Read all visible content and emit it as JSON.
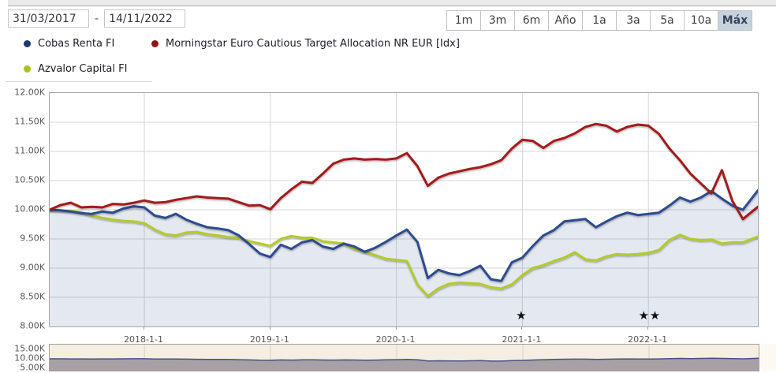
{
  "toolbar": {
    "date_from": "31/03/2017",
    "date_to": "14/11/2022",
    "date_separator": "-",
    "range_buttons": [
      {
        "label": "1m",
        "active": false
      },
      {
        "label": "3m",
        "active": false
      },
      {
        "label": "6m",
        "active": false
      },
      {
        "label": "Año",
        "active": false
      },
      {
        "label": "1a",
        "active": false
      },
      {
        "label": "3a",
        "active": false
      },
      {
        "label": "5a",
        "active": false
      },
      {
        "label": "10a",
        "active": false
      },
      {
        "label": "Máx",
        "active": true
      }
    ],
    "active_button_bg": "#c7d2df"
  },
  "legend": {
    "items": [
      {
        "name": "Cobas Renta FI",
        "color": "#1d3a6d"
      },
      {
        "name": "Morningstar Euro Cautious Target Allocation NR EUR [Idx]",
        "color": "#8f1616"
      },
      {
        "name": "Azvalor Capital FI",
        "color": "#a9c31d"
      }
    ]
  },
  "chart_data": {
    "type": "line",
    "unit": "K",
    "x_start": "2017-03-31",
    "x_end": "2022-11-14",
    "ylim": [
      8,
      12
    ],
    "grid": true,
    "area_fill": "rgba(45,76,142,0.13)",
    "y_tick_labels": [
      {
        "value": 12.0,
        "label": "12.00K"
      },
      {
        "value": 11.5,
        "label": "11.50K"
      },
      {
        "value": 11.0,
        "label": "11.00K"
      },
      {
        "value": 10.5,
        "label": "10.50K"
      },
      {
        "value": 10.0,
        "label": "10.00K"
      },
      {
        "value": 9.5,
        "label": "9.50K"
      },
      {
        "value": 9.0,
        "label": "9.00K"
      },
      {
        "value": 8.5,
        "label": "8.50K"
      },
      {
        "value": 8.0,
        "label": "8.00K"
      }
    ],
    "x_ticks": [
      {
        "date": "2018-01",
        "label": "2018-1-1"
      },
      {
        "date": "2019-01",
        "label": "2019-1-1"
      },
      {
        "date": "2020-01",
        "label": "2020-1-1"
      },
      {
        "date": "2021-01",
        "label": "2021-1-1"
      },
      {
        "date": "2022-01",
        "label": "2022-1-1"
      }
    ],
    "series": [
      {
        "name": "Cobas Renta FI",
        "color": "#2d4c8e",
        "area": true,
        "points": [
          [
            "2017-03-31",
            10.0
          ],
          [
            "2017-05",
            9.99
          ],
          [
            "2017-06",
            9.97
          ],
          [
            "2017-07",
            9.94
          ],
          [
            "2017-08",
            9.93
          ],
          [
            "2017-09",
            9.97
          ],
          [
            "2017-10",
            9.95
          ],
          [
            "2017-11",
            10.02
          ],
          [
            "2017-12",
            10.06
          ],
          [
            "2018-01",
            10.04
          ],
          [
            "2018-02",
            9.9
          ],
          [
            "2018-03",
            9.86
          ],
          [
            "2018-04",
            9.93
          ],
          [
            "2018-05",
            9.83
          ],
          [
            "2018-06",
            9.76
          ],
          [
            "2018-07",
            9.7
          ],
          [
            "2018-08",
            9.68
          ],
          [
            "2018-09",
            9.65
          ],
          [
            "2018-10",
            9.56
          ],
          [
            "2018-11",
            9.41
          ],
          [
            "2018-12",
            9.25
          ],
          [
            "2019-01",
            9.19
          ],
          [
            "2019-02",
            9.4
          ],
          [
            "2019-03",
            9.33
          ],
          [
            "2019-04",
            9.44
          ],
          [
            "2019-05",
            9.48
          ],
          [
            "2019-06",
            9.37
          ],
          [
            "2019-07",
            9.33
          ],
          [
            "2019-08",
            9.42
          ],
          [
            "2019-09",
            9.37
          ],
          [
            "2019-10",
            9.28
          ],
          [
            "2019-11",
            9.35
          ],
          [
            "2019-12",
            9.45
          ],
          [
            "2020-01",
            9.56
          ],
          [
            "2020-02",
            9.66
          ],
          [
            "2020-03",
            9.45
          ],
          [
            "2020-04",
            8.83
          ],
          [
            "2020-05",
            8.97
          ],
          [
            "2020-06",
            8.91
          ],
          [
            "2020-07",
            8.88
          ],
          [
            "2020-08",
            8.95
          ],
          [
            "2020-09",
            9.04
          ],
          [
            "2020-10",
            8.81
          ],
          [
            "2020-11",
            8.78
          ],
          [
            "2020-12",
            9.1
          ],
          [
            "2021-01",
            9.18
          ],
          [
            "2021-02",
            9.38
          ],
          [
            "2021-03",
            9.56
          ],
          [
            "2021-04",
            9.65
          ],
          [
            "2021-05",
            9.8
          ],
          [
            "2021-06",
            9.82
          ],
          [
            "2021-07",
            9.84
          ],
          [
            "2021-08",
            9.7
          ],
          [
            "2021-09",
            9.8
          ],
          [
            "2021-10",
            9.89
          ],
          [
            "2021-11",
            9.95
          ],
          [
            "2021-12",
            9.91
          ],
          [
            "2022-01",
            9.93
          ],
          [
            "2022-02",
            9.95
          ],
          [
            "2022-03",
            10.07
          ],
          [
            "2022-04",
            10.21
          ],
          [
            "2022-05",
            10.14
          ],
          [
            "2022-06",
            10.21
          ],
          [
            "2022-07",
            10.32
          ],
          [
            "2022-08",
            10.19
          ],
          [
            "2022-09",
            10.07
          ],
          [
            "2022-10",
            10.0
          ],
          [
            "2022-11-14",
            10.33
          ]
        ]
      },
      {
        "name": "Morningstar Euro Cautious Target Allocation NR EUR [Idx]",
        "color": "#a11b1b",
        "area": false,
        "points": [
          [
            "2017-03-31",
            10.0
          ],
          [
            "2017-05",
            10.08
          ],
          [
            "2017-06",
            10.12
          ],
          [
            "2017-07",
            10.04
          ],
          [
            "2017-08",
            10.05
          ],
          [
            "2017-09",
            10.04
          ],
          [
            "2017-10",
            10.1
          ],
          [
            "2017-11",
            10.09
          ],
          [
            "2017-12",
            10.12
          ],
          [
            "2018-01",
            10.16
          ],
          [
            "2018-02",
            10.12
          ],
          [
            "2018-03",
            10.13
          ],
          [
            "2018-04",
            10.17
          ],
          [
            "2018-05",
            10.2
          ],
          [
            "2018-06",
            10.23
          ],
          [
            "2018-07",
            10.21
          ],
          [
            "2018-08",
            10.2
          ],
          [
            "2018-09",
            10.19
          ],
          [
            "2018-10",
            10.13
          ],
          [
            "2018-11",
            10.07
          ],
          [
            "2018-12",
            10.08
          ],
          [
            "2019-01",
            10.01
          ],
          [
            "2019-02",
            10.2
          ],
          [
            "2019-03",
            10.35
          ],
          [
            "2019-04",
            10.48
          ],
          [
            "2019-05",
            10.46
          ],
          [
            "2019-06",
            10.62
          ],
          [
            "2019-07",
            10.79
          ],
          [
            "2019-08",
            10.86
          ],
          [
            "2019-09",
            10.88
          ],
          [
            "2019-10",
            10.86
          ],
          [
            "2019-11",
            10.87
          ],
          [
            "2019-12",
            10.86
          ],
          [
            "2020-01",
            10.88
          ],
          [
            "2020-02",
            10.97
          ],
          [
            "2020-03",
            10.75
          ],
          [
            "2020-04",
            10.41
          ],
          [
            "2020-05",
            10.55
          ],
          [
            "2020-06",
            10.62
          ],
          [
            "2020-07",
            10.66
          ],
          [
            "2020-08",
            10.7
          ],
          [
            "2020-09",
            10.73
          ],
          [
            "2020-10",
            10.78
          ],
          [
            "2020-11",
            10.85
          ],
          [
            "2020-12",
            11.05
          ],
          [
            "2021-01",
            11.2
          ],
          [
            "2021-02",
            11.18
          ],
          [
            "2021-03",
            11.06
          ],
          [
            "2021-04",
            11.18
          ],
          [
            "2021-05",
            11.23
          ],
          [
            "2021-06",
            11.31
          ],
          [
            "2021-07",
            11.42
          ],
          [
            "2021-08",
            11.47
          ],
          [
            "2021-09",
            11.44
          ],
          [
            "2021-10",
            11.34
          ],
          [
            "2021-11",
            11.42
          ],
          [
            "2021-12",
            11.46
          ],
          [
            "2022-01",
            11.44
          ],
          [
            "2022-02",
            11.3
          ],
          [
            "2022-03",
            11.05
          ],
          [
            "2022-04",
            10.85
          ],
          [
            "2022-05",
            10.62
          ],
          [
            "2022-06",
            10.45
          ],
          [
            "2022-07",
            10.28
          ],
          [
            "2022-08",
            10.68
          ],
          [
            "2022-09",
            10.15
          ],
          [
            "2022-10",
            9.84
          ],
          [
            "2022-11-14",
            10.05
          ]
        ]
      },
      {
        "name": "Azvalor Capital FI",
        "color": "#b3ca2b",
        "area": false,
        "points": [
          [
            "2017-03-31",
            10.0
          ],
          [
            "2017-05",
            9.99
          ],
          [
            "2017-06",
            9.98
          ],
          [
            "2017-07",
            9.96
          ],
          [
            "2017-08",
            9.9
          ],
          [
            "2017-09",
            9.86
          ],
          [
            "2017-10",
            9.83
          ],
          [
            "2017-11",
            9.81
          ],
          [
            "2017-12",
            9.8
          ],
          [
            "2018-01",
            9.77
          ],
          [
            "2018-02",
            9.66
          ],
          [
            "2018-03",
            9.58
          ],
          [
            "2018-04",
            9.56
          ],
          [
            "2018-05",
            9.61
          ],
          [
            "2018-06",
            9.62
          ],
          [
            "2018-07",
            9.58
          ],
          [
            "2018-08",
            9.56
          ],
          [
            "2018-09",
            9.53
          ],
          [
            "2018-10",
            9.52
          ],
          [
            "2018-11",
            9.46
          ],
          [
            "2018-12",
            9.42
          ],
          [
            "2019-01",
            9.38
          ],
          [
            "2019-02",
            9.5
          ],
          [
            "2019-03",
            9.55
          ],
          [
            "2019-04",
            9.52
          ],
          [
            "2019-05",
            9.52
          ],
          [
            "2019-06",
            9.46
          ],
          [
            "2019-07",
            9.44
          ],
          [
            "2019-08",
            9.42
          ],
          [
            "2019-09",
            9.33
          ],
          [
            "2019-10",
            9.28
          ],
          [
            "2019-11",
            9.22
          ],
          [
            "2019-12",
            9.16
          ],
          [
            "2020-01",
            9.14
          ],
          [
            "2020-02",
            9.12
          ],
          [
            "2020-03",
            8.72
          ],
          [
            "2020-04",
            8.52
          ],
          [
            "2020-05",
            8.65
          ],
          [
            "2020-06",
            8.73
          ],
          [
            "2020-07",
            8.75
          ],
          [
            "2020-08",
            8.74
          ],
          [
            "2020-09",
            8.73
          ],
          [
            "2020-10",
            8.67
          ],
          [
            "2020-11",
            8.65
          ],
          [
            "2020-12",
            8.72
          ],
          [
            "2021-01",
            8.88
          ],
          [
            "2021-02",
            9.0
          ],
          [
            "2021-03",
            9.05
          ],
          [
            "2021-04",
            9.12
          ],
          [
            "2021-05",
            9.18
          ],
          [
            "2021-06",
            9.27
          ],
          [
            "2021-07",
            9.15
          ],
          [
            "2021-08",
            9.13
          ],
          [
            "2021-09",
            9.2
          ],
          [
            "2021-10",
            9.24
          ],
          [
            "2021-11",
            9.23
          ],
          [
            "2021-12",
            9.24
          ],
          [
            "2022-01",
            9.26
          ],
          [
            "2022-02",
            9.31
          ],
          [
            "2022-03",
            9.48
          ],
          [
            "2022-04",
            9.57
          ],
          [
            "2022-05",
            9.5
          ],
          [
            "2022-06",
            9.48
          ],
          [
            "2022-07",
            9.49
          ],
          [
            "2022-08",
            9.42
          ],
          [
            "2022-09",
            9.44
          ],
          [
            "2022-10",
            9.44
          ],
          [
            "2022-11-14",
            9.54
          ]
        ]
      }
    ],
    "markers": [
      {
        "date": "2020-12-28",
        "value": 8.19,
        "symbol": "★"
      },
      {
        "date": "2021-12-18",
        "value": 8.19,
        "symbol": "★"
      },
      {
        "date": "2022-01-20",
        "value": 8.19,
        "symbol": "★"
      }
    ]
  },
  "navigator": {
    "series": "Cobas Renta FI",
    "bg": "#f5efe3",
    "area_fill": "#a7a1a6",
    "line_color": "#46527e",
    "y_ticks": [
      {
        "value": 15,
        "label": "15.00K"
      },
      {
        "value": 10,
        "label": "10.00K"
      },
      {
        "value": 5,
        "label": "5.00K"
      }
    ]
  }
}
